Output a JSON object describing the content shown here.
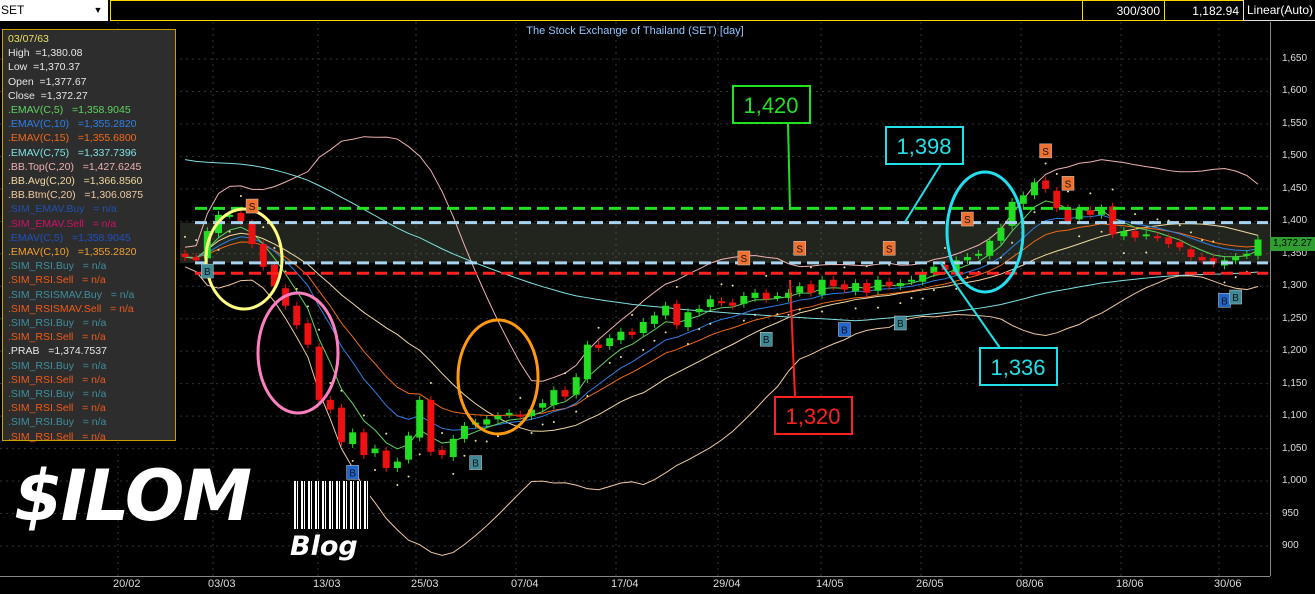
{
  "toolbar": {
    "symbol": "SET",
    "count": "300/300",
    "cursor_value": "1,182.94",
    "scale_mode": "Linear(Auto)"
  },
  "legend": [
    {
      "text": "03/07/63",
      "color": "#e8e060"
    },
    {
      "text": "High  =1,380.08",
      "color": "#e6e6e6"
    },
    {
      "text": "Low  =1,370.37",
      "color": "#e6e6e6"
    },
    {
      "text": "Open  =1,377.67",
      "color": "#e6e6e6"
    },
    {
      "text": "Close  =1,372.27",
      "color": "#e6e6e6"
    },
    {
      "text": ".EMAV(C,5)   =1,358.9045",
      "color": "#5fd35f"
    },
    {
      "text": ".EMAV(C,10)   =1,355.2820",
      "color": "#2f7fe6"
    },
    {
      "text": ".EMAV(C,15)   =1,355.6800",
      "color": "#f06a1a"
    },
    {
      "text": ".EMAV(C,75)   =1,337.7396",
      "color": "#7fe0e0"
    },
    {
      "text": ".BB.Top(C,20)   =1,427.6245",
      "color": "#f0b0b0"
    },
    {
      "text": ".BB.Avg(C,20)   =1,366.8560",
      "color": "#f0d8a0"
    },
    {
      "text": ".BB.Btm(C,20)   =1,306.0875",
      "color": "#f0c8a0"
    },
    {
      "text": ".SIM_EMAV.Buy   = n/a",
      "color": "#2050b0"
    },
    {
      "text": ".SIM_EMAV.Sell   = n/a",
      "color": "#d0106a"
    },
    {
      "text": ".EMAV(C,5)   =1,358.9045",
      "color": "#2050c0"
    },
    {
      "text": ".EMAV(C,10)   =1,355.2820",
      "color": "#f0a030"
    },
    {
      "text": ".SIM_RSI.Buy   = n/a",
      "color": "#3f8f9f"
    },
    {
      "text": ".SIM_RSI.Sell   = n/a",
      "color": "#f05a1a"
    },
    {
      "text": ".SIM_RSISMAV.Buy   = n/a",
      "color": "#3f8f9f"
    },
    {
      "text": ".SIM_RSISMAV.Sell   = n/a",
      "color": "#f05a1a"
    },
    {
      "text": ".SIM_RSI.Buy   = n/a",
      "color": "#3f8f9f"
    },
    {
      "text": ".SIM_RSI.Sell   = n/a",
      "color": "#f05a1a"
    },
    {
      "text": ".PRAB   =1,374.7537",
      "color": "#e6e6e6"
    },
    {
      "text": ".SIM_RSI.Buy   = n/a",
      "color": "#3f8f9f"
    },
    {
      "text": ".SIM_RSI.Sell   = n/a",
      "color": "#f05a1a"
    },
    {
      "text": ".SIM_RSI.Buy   = n/a",
      "color": "#3f8f9f"
    },
    {
      "text": ".SIM_RSI.Sell   = n/a",
      "color": "#f05a1a"
    },
    {
      "text": ".SIM_RSI.Buy   = n/a",
      "color": "#3f8f9f"
    },
    {
      "text": ".SIM_RSI.Sell   = n/a",
      "color": "#f05a1a"
    }
  ],
  "logo": {
    "main": "$ILOM",
    "sub": "Blog"
  },
  "chart_data": {
    "type": "candlestick",
    "title": "The Stock Exchange of Thailand (SET) [day]",
    "ylim": [
      880,
      1680
    ],
    "y_ticks": [
      900,
      950,
      1000,
      1050,
      1100,
      1150,
      1200,
      1250,
      1300,
      1350,
      1400,
      1450,
      1500,
      1550,
      1600,
      1650
    ],
    "y_tick_labels": [
      "900",
      "950",
      "1,000",
      "1,050",
      "1,100",
      "1,150",
      "1,200",
      "1,250",
      "1,300",
      "1,350",
      "1,400",
      "1,450",
      "1,500",
      "1,550",
      "1,600",
      "1,650"
    ],
    "x_tick_labels": [
      "20/02",
      "03/03",
      "13/03",
      "25/03",
      "07/04",
      "17/04",
      "29/04",
      "14/05",
      "26/05",
      "08/06",
      "18/06",
      "30/06"
    ],
    "last_price_label": "1,372.27",
    "close": [
      1345,
      1340,
      1385,
      1410,
      1410,
      1400,
      1365,
      1330,
      1300,
      1270,
      1240,
      1210,
      1125,
      1110,
      1060,
      1075,
      1040,
      1050,
      1020,
      1030,
      1070,
      1125,
      1045,
      1040,
      1065,
      1085,
      1090,
      1095,
      1100,
      1105,
      1100,
      1110,
      1120,
      1140,
      1130,
      1160,
      1210,
      1205,
      1220,
      1230,
      1225,
      1245,
      1255,
      1270,
      1240,
      1260,
      1265,
      1280,
      1275,
      1270,
      1285,
      1290,
      1280,
      1285,
      1290,
      1300,
      1290,
      1310,
      1300,
      1295,
      1305,
      1290,
      1310,
      1300,
      1305,
      1310,
      1320,
      1330,
      1325,
      1340,
      1345,
      1350,
      1370,
      1390,
      1430,
      1440,
      1460,
      1450,
      1420,
      1400,
      1420,
      1410,
      1420,
      1380,
      1385,
      1375,
      1380,
      1375,
      1365,
      1360,
      1345,
      1340,
      1335,
      1340,
      1345,
      1350,
      1372
    ],
    "levels": [
      {
        "value": 1420,
        "label": "1,420",
        "color": "#22e022"
      },
      {
        "value": 1398,
        "label": "1,398",
        "color": "#a8d4f0"
      },
      {
        "value": 1336,
        "label": "1,336",
        "color": "#a8d4f0"
      },
      {
        "value": 1320,
        "label": "1,320",
        "color": "#ff2020"
      }
    ],
    "annotation_colors": {
      "1,420": "#22e022",
      "1,398": "#22e0e8",
      "1,336": "#22e0e8",
      "1,320": "#ff2020"
    },
    "signals": [
      {
        "type": "B",
        "index": 2
      },
      {
        "type": "S",
        "index": 6
      },
      {
        "type": "B",
        "index": 15
      },
      {
        "type": "B",
        "index": 26
      },
      {
        "type": "S",
        "index": 50
      },
      {
        "type": "B",
        "index": 52
      },
      {
        "type": "S",
        "index": 55
      },
      {
        "type": "B",
        "index": 59
      },
      {
        "type": "S",
        "index": 63
      },
      {
        "type": "B",
        "index": 64
      },
      {
        "type": "S",
        "index": 70
      },
      {
        "type": "S",
        "index": 77
      },
      {
        "type": "S",
        "index": 79
      },
      {
        "type": "B",
        "index": 93
      },
      {
        "type": "B",
        "index": 94
      }
    ],
    "colors": {
      "up": "#22dd22",
      "down": "#ee1111",
      "ema5": "#5fd35f",
      "ema10": "#2f7fe6",
      "ema15": "#f06a1a",
      "ema75": "#7fe0e0",
      "bb_top": "#f0b0b0",
      "bb_avg": "#f0d8a0",
      "bb_btm": "#f0c8a0"
    }
  }
}
